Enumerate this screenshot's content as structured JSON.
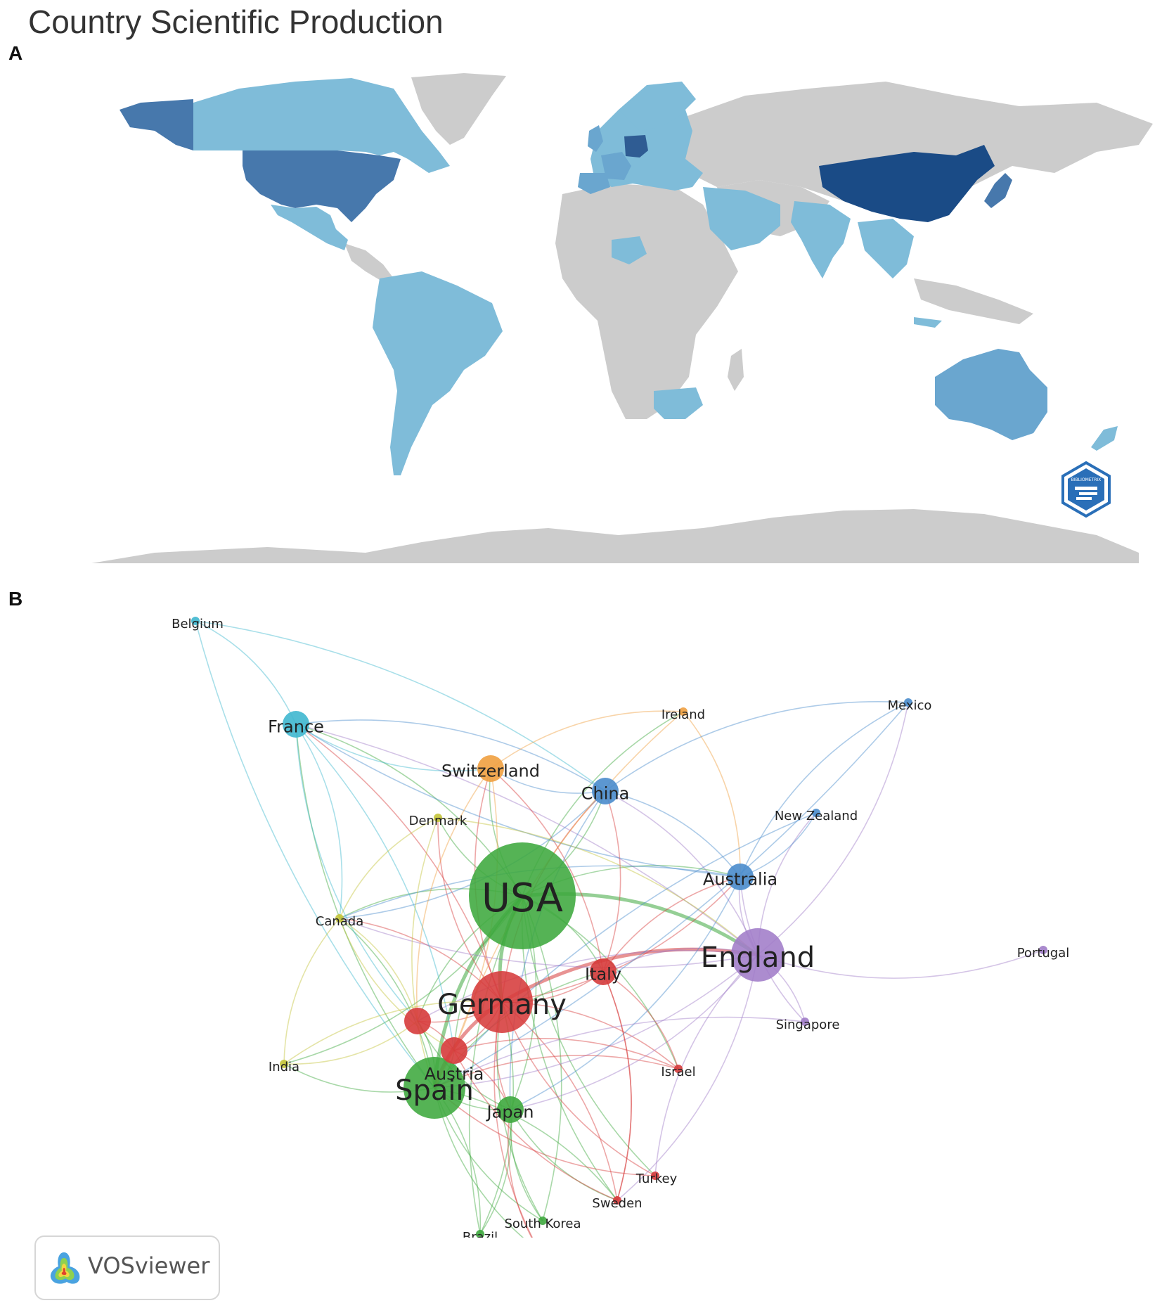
{
  "title": "Country Scientific Production",
  "panels": {
    "a": "A",
    "b": "B"
  },
  "map": {
    "colors": {
      "ocean": "#ffffff",
      "no_data": "#cccccc",
      "level1": "#7fbcd9",
      "level2": "#6aa6cf",
      "level3": "#4778ac",
      "level4": "#2f5c93",
      "level5": "#1a4b86"
    },
    "country_levels": [
      {
        "region": "China",
        "level": "level5"
      },
      {
        "region": "USA",
        "level": "level3"
      },
      {
        "region": "Alaska",
        "level": "level3"
      },
      {
        "region": "Germany",
        "level": "level4"
      },
      {
        "region": "Japan",
        "level": "level3"
      },
      {
        "region": "Australia",
        "level": "level2"
      },
      {
        "region": "Spain",
        "level": "level2"
      },
      {
        "region": "France",
        "level": "level2"
      },
      {
        "region": "Canada",
        "level": "level1"
      },
      {
        "region": "Mexico",
        "level": "level1"
      },
      {
        "region": "Brazil",
        "level": "level1"
      },
      {
        "region": "India",
        "level": "level1"
      }
    ],
    "badge_text": "BIBLIOMETRIX"
  },
  "network": {
    "link_colors": {
      "red": "#d63b3b",
      "green": "#3ea83e",
      "blue": "#4a8ccc",
      "yellow": "#c4c43a",
      "purple": "#a07cc8",
      "cyan": "#3fb7cf",
      "orange": "#f0a040"
    },
    "nodes": [
      {
        "id": "USA",
        "label": "USA",
        "cluster": "green",
        "weight": 8
      },
      {
        "id": "Germany",
        "label": "Germany",
        "cluster": "red",
        "weight": 5
      },
      {
        "id": "England",
        "label": "England",
        "cluster": "purple",
        "weight": 4
      },
      {
        "id": "Spain",
        "label": "Spain",
        "cluster": "green",
        "weight": 5
      },
      {
        "id": "Italy",
        "label": "Italy",
        "cluster": "red",
        "weight": 2
      },
      {
        "id": "Austria",
        "label": "Austria",
        "cluster": "red",
        "weight": 2
      },
      {
        "id": "Netherlands",
        "label": "",
        "cluster": "red",
        "weight": 2
      },
      {
        "id": "Japan",
        "label": "Japan",
        "cluster": "green",
        "weight": 2
      },
      {
        "id": "China",
        "label": "China",
        "cluster": "blue",
        "weight": 2
      },
      {
        "id": "Australia",
        "label": "Australia",
        "cluster": "blue",
        "weight": 2
      },
      {
        "id": "France",
        "label": "France",
        "cluster": "cyan",
        "weight": 2
      },
      {
        "id": "Switzerland",
        "label": "Switzerland",
        "cluster": "orange",
        "weight": 2
      },
      {
        "id": "Canada",
        "label": "Canada",
        "cluster": "yellow",
        "weight": 1
      },
      {
        "id": "Denmark",
        "label": "Denmark",
        "cluster": "yellow",
        "weight": 1
      },
      {
        "id": "India",
        "label": "India",
        "cluster": "yellow",
        "weight": 1
      },
      {
        "id": "Belgium",
        "label": "Belgium",
        "cluster": "cyan",
        "weight": 1
      },
      {
        "id": "Ireland",
        "label": "Ireland",
        "cluster": "orange",
        "weight": 1
      },
      {
        "id": "Mexico",
        "label": "Mexico",
        "cluster": "blue",
        "weight": 1
      },
      {
        "id": "New Zealand",
        "label": "New Zealand",
        "cluster": "blue",
        "weight": 1
      },
      {
        "id": "Portugal",
        "label": "Portugal",
        "cluster": "purple",
        "weight": 1
      },
      {
        "id": "Singapore",
        "label": "Singapore",
        "cluster": "purple",
        "weight": 1
      },
      {
        "id": "Israel",
        "label": "Israel",
        "cluster": "red",
        "weight": 1
      },
      {
        "id": "Turkey",
        "label": "Turkey",
        "cluster": "red",
        "weight": 1
      },
      {
        "id": "Sweden",
        "label": "Sweden",
        "cluster": "red",
        "weight": 1
      },
      {
        "id": "South Korea",
        "label": "South Korea",
        "cluster": "green",
        "weight": 1
      },
      {
        "id": "Brazil",
        "label": "Brazil",
        "cluster": "green",
        "weight": 1
      },
      {
        "id": "Unlabeled",
        "label": "",
        "cluster": "red",
        "weight": 1
      }
    ],
    "links": [
      [
        "USA",
        "Germany"
      ],
      [
        "USA",
        "England"
      ],
      [
        "USA",
        "Spain"
      ],
      [
        "USA",
        "Italy"
      ],
      [
        "USA",
        "Austria"
      ],
      [
        "USA",
        "Japan"
      ],
      [
        "USA",
        "China"
      ],
      [
        "USA",
        "Australia"
      ],
      [
        "USA",
        "France"
      ],
      [
        "USA",
        "Switzerland"
      ],
      [
        "USA",
        "Canada"
      ],
      [
        "USA",
        "Denmark"
      ],
      [
        "USA",
        "Netherlands"
      ],
      [
        "USA",
        "Israel"
      ],
      [
        "USA",
        "Sweden"
      ],
      [
        "USA",
        "South Korea"
      ],
      [
        "USA",
        "Brazil"
      ],
      [
        "USA",
        "Ireland"
      ],
      [
        "USA",
        "Turkey"
      ],
      [
        "USA",
        "India"
      ],
      [
        "Germany",
        "Spain"
      ],
      [
        "Germany",
        "England"
      ],
      [
        "Germany",
        "Italy"
      ],
      [
        "Germany",
        "Austria"
      ],
      [
        "Germany",
        "Japan"
      ],
      [
        "Germany",
        "Switzerland"
      ],
      [
        "Germany",
        "France"
      ],
      [
        "Germany",
        "China"
      ],
      [
        "Germany",
        "Australia"
      ],
      [
        "Germany",
        "Netherlands"
      ],
      [
        "Germany",
        "Canada"
      ],
      [
        "Germany",
        "Sweden"
      ],
      [
        "Germany",
        "Turkey"
      ],
      [
        "Germany",
        "Denmark"
      ],
      [
        "Germany",
        "Unlabeled"
      ],
      [
        "Germany",
        "Israel"
      ],
      [
        "England",
        "Italy"
      ],
      [
        "England",
        "Australia"
      ],
      [
        "England",
        "China"
      ],
      [
        "England",
        "Spain"
      ],
      [
        "England",
        "Portugal"
      ],
      [
        "England",
        "Singapore"
      ],
      [
        "England",
        "Turkey"
      ],
      [
        "England",
        "Sweden"
      ],
      [
        "England",
        "Netherlands"
      ],
      [
        "England",
        "Japan"
      ],
      [
        "England",
        "Mexico"
      ],
      [
        "England",
        "New Zealand"
      ],
      [
        "England",
        "France"
      ],
      [
        "England",
        "Canada"
      ],
      [
        "Spain",
        "Japan"
      ],
      [
        "Spain",
        "Italy"
      ],
      [
        "Spain",
        "Austria"
      ],
      [
        "Spain",
        "France"
      ],
      [
        "Spain",
        "Canada"
      ],
      [
        "Spain",
        "Brazil"
      ],
      [
        "Spain",
        "South Korea"
      ],
      [
        "Spain",
        "India"
      ],
      [
        "Spain",
        "Netherlands"
      ],
      [
        "Spain",
        "Sweden"
      ],
      [
        "Spain",
        "Unlabeled"
      ],
      [
        "Italy",
        "Australia"
      ],
      [
        "Italy",
        "China"
      ],
      [
        "Italy",
        "Israel"
      ],
      [
        "Italy",
        "Switzerland"
      ],
      [
        "Italy",
        "Sweden"
      ],
      [
        "Australia",
        "China"
      ],
      [
        "Australia",
        "Mexico"
      ],
      [
        "Australia",
        "New Zealand"
      ],
      [
        "Australia",
        "Japan"
      ],
      [
        "Australia",
        "Canada"
      ],
      [
        "Australia",
        "France"
      ],
      [
        "China",
        "France"
      ],
      [
        "China",
        "Switzerland"
      ],
      [
        "China",
        "Japan"
      ],
      [
        "China",
        "Canada"
      ],
      [
        "France",
        "Belgium"
      ],
      [
        "France",
        "Canada"
      ],
      [
        "France",
        "Switzerland"
      ],
      [
        "France",
        "Austria"
      ],
      [
        "France",
        "Netherlands"
      ],
      [
        "Belgium",
        "China"
      ],
      [
        "Belgium",
        "Spain"
      ],
      [
        "Switzerland",
        "Ireland"
      ],
      [
        "Switzerland",
        "Netherlands"
      ],
      [
        "Switzerland",
        "Spain"
      ],
      [
        "Ireland",
        "Austria"
      ],
      [
        "Ireland",
        "Australia"
      ],
      [
        "Canada",
        "India"
      ],
      [
        "Canada",
        "Netherlands"
      ],
      [
        "Canada",
        "Austria"
      ],
      [
        "Canada",
        "Denmark"
      ],
      [
        "Japan",
        "South Korea"
      ],
      [
        "Japan",
        "Brazil"
      ],
      [
        "Japan",
        "Sweden"
      ],
      [
        "Japan",
        "Netherlands"
      ],
      [
        "Austria",
        "Netherlands"
      ],
      [
        "Austria",
        "Japan"
      ],
      [
        "Austria",
        "Sweden"
      ],
      [
        "Austria",
        "Israel"
      ],
      [
        "Denmark",
        "Spain"
      ],
      [
        "Denmark",
        "England"
      ],
      [
        "India",
        "Netherlands"
      ],
      [
        "India",
        "Germany"
      ],
      [
        "Mexico",
        "China"
      ],
      [
        "Mexico",
        "Spain"
      ],
      [
        "New Zealand",
        "Spain"
      ],
      [
        "Singapore",
        "Australia"
      ],
      [
        "Singapore",
        "Spain"
      ],
      [
        "Turkey",
        "Spain"
      ],
      [
        "Sweden",
        "Italy"
      ],
      [
        "South Korea",
        "Germany"
      ],
      [
        "Brazil",
        "Germany"
      ],
      [
        "Unlabeled",
        "Japan"
      ],
      [
        "Israel",
        "Spain"
      ]
    ]
  },
  "vosviewer": {
    "label": "VOSviewer"
  }
}
